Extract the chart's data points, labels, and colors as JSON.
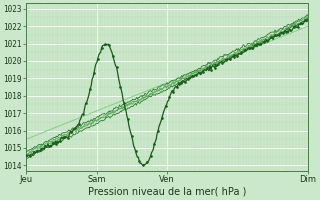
{
  "bg_color": "#cce8cc",
  "plot_bg_color": "#cce8cc",
  "grid_color_major": "#ffffff",
  "grid_color_minor": "#b8d8b8",
  "line_color_dark": "#1a5c1a",
  "line_color_medium": "#2d7a2d",
  "line_color_light": "#5aaa5a",
  "line_color_thin": "#88cc88",
  "yticks": [
    1014,
    1015,
    1016,
    1017,
    1018,
    1019,
    1020,
    1021,
    1022,
    1023
  ],
  "ylim": [
    1013.7,
    1023.3
  ],
  "xlabel": "Pression niveau de la mer( hPa )",
  "xtick_labels": [
    "Jeu",
    "Sam",
    "Ven",
    "Dim"
  ],
  "xtick_positions": [
    0.0,
    0.25,
    0.5,
    1.0
  ],
  "n_points": 300
}
